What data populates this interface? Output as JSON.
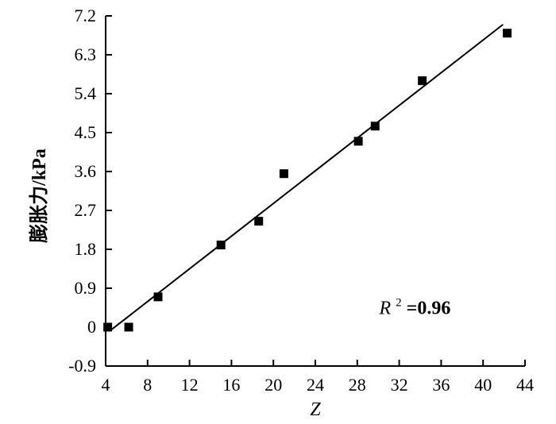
{
  "chart_data": {
    "type": "scatter",
    "xlabel": "Z",
    "ylabel": "膨胀力/kPa",
    "xlim": [
      4,
      44
    ],
    "ylim": [
      -0.9,
      7.2
    ],
    "xticks": [
      "4",
      "8",
      "12",
      "16",
      "20",
      "24",
      "28",
      "32",
      "36",
      "40",
      "44"
    ],
    "yticks": [
      "-0.9",
      "0",
      "0.9",
      "1.8",
      "2.7",
      "3.6",
      "4.5",
      "5.4",
      "6.3",
      "7.2"
    ],
    "grid": false,
    "series": [
      {
        "x": [
          4.2,
          6.2,
          9.0,
          15.0,
          18.6,
          21.0,
          28.1,
          29.7,
          34.2,
          42.3
        ],
        "y": [
          0.0,
          0.0,
          0.7,
          1.9,
          2.45,
          3.55,
          4.3,
          4.65,
          5.7,
          6.8
        ]
      }
    ],
    "fit_line": {
      "x": [
        4.6,
        41.9
      ],
      "y": [
        -0.05,
        7.0
      ]
    },
    "annotation": {
      "prefix": "R",
      "superscript": "2",
      "value": "=0.96"
    }
  }
}
